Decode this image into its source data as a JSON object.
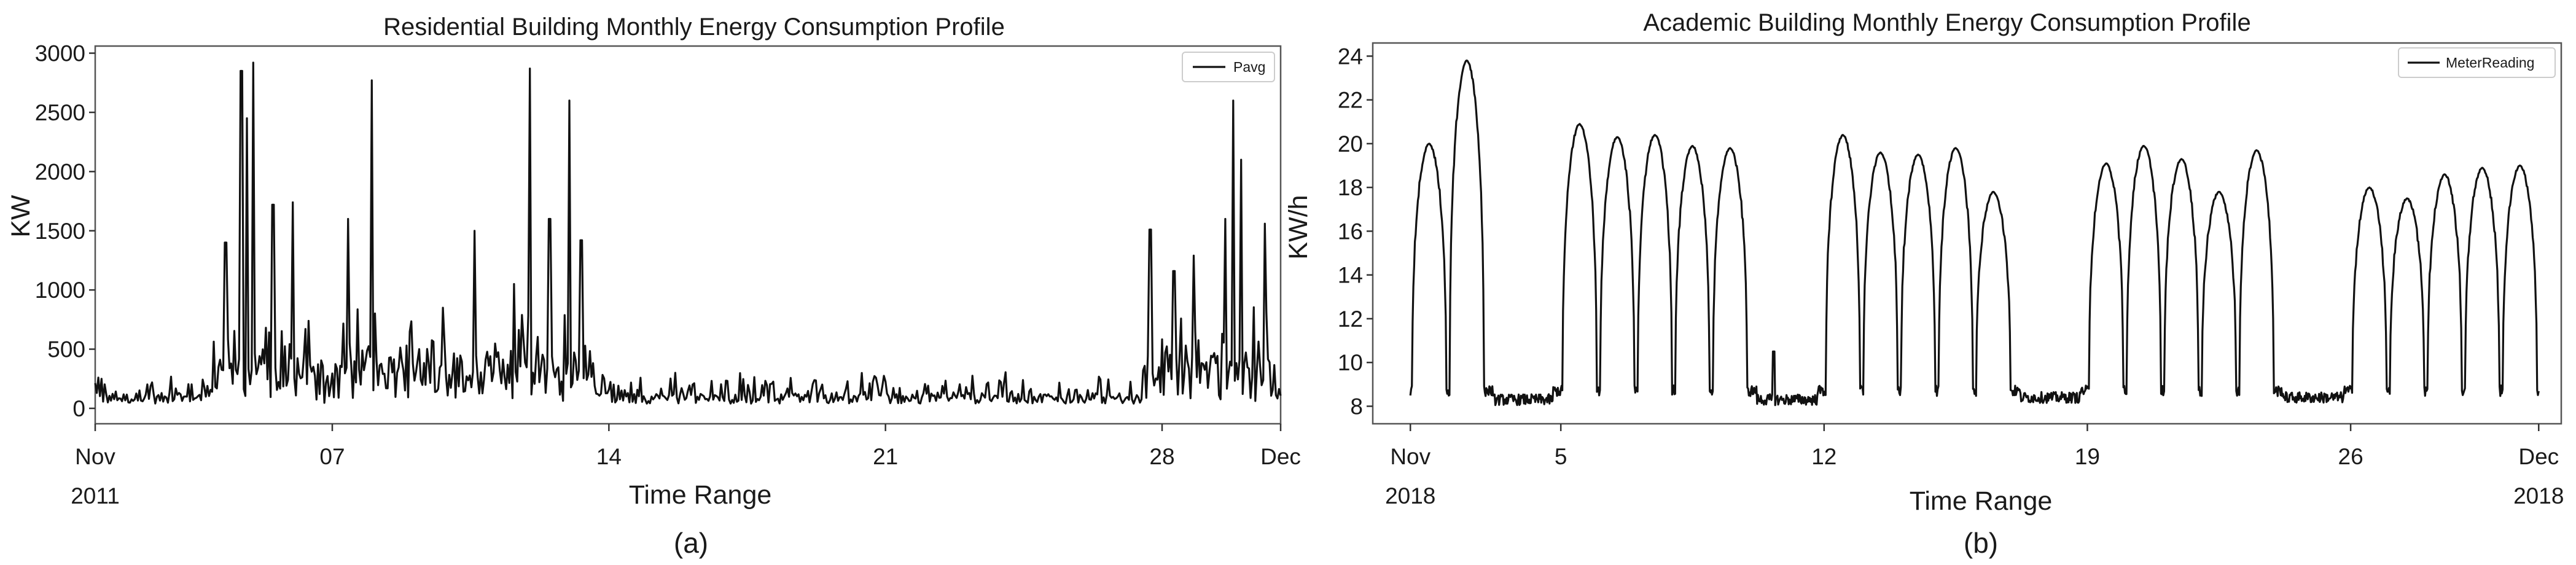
{
  "chart_data": [
    {
      "type": "line",
      "title": "Residential Building Monthly Energy Consumption Profile",
      "xlabel": "Time Range",
      "ylabel": "KW",
      "sublabel": "(a)",
      "legend": [
        "Pavg"
      ],
      "legend_position": "top-right",
      "ylim": [
        -130,
        3060
      ],
      "yticks": [
        0,
        500,
        1000,
        1500,
        2000,
        2500,
        3000
      ],
      "ytick_labels": [
        "0",
        "500",
        "1000",
        "1500",
        "2000",
        "2500",
        "3000"
      ],
      "xlim": [
        0,
        30
      ],
      "xticks": [
        {
          "pos": 0,
          "label": "Nov",
          "label2": "2011"
        },
        {
          "pos": 6,
          "label": "07",
          "label2": ""
        },
        {
          "pos": 13,
          "label": "14",
          "label2": ""
        },
        {
          "pos": 20,
          "label": "21",
          "label2": ""
        },
        {
          "pos": 27,
          "label": "28",
          "label2": ""
        },
        {
          "pos": 30,
          "label": "Dec",
          "label2": ""
        }
      ],
      "series": [
        {
          "name": "Pavg",
          "peaks": [
            [
              3.3,
              1400
            ],
            [
              3.7,
              2850
            ],
            [
              3.85,
              2450
            ],
            [
              4.0,
              2920
            ],
            [
              4.5,
              1720
            ],
            [
              5.0,
              1740
            ],
            [
              6.4,
              1600
            ],
            [
              7.0,
              2770
            ],
            [
              8.2,
              500
            ],
            [
              8.8,
              850
            ],
            [
              9.6,
              1500
            ],
            [
              10.6,
              1050
            ],
            [
              11.0,
              2870
            ],
            [
              11.5,
              1600
            ],
            [
              12.0,
              2600
            ],
            [
              12.3,
              1420
            ],
            [
              26.7,
              1510
            ],
            [
              27.3,
              1160
            ],
            [
              27.8,
              1290
            ],
            [
              28.6,
              1600
            ],
            [
              28.8,
              2600
            ],
            [
              29.0,
              2100
            ],
            [
              29.6,
              1560
            ]
          ]
        }
      ]
    },
    {
      "type": "line",
      "title": "Academic Building Monthly Energy Consumption Profile",
      "xlabel": "Time Range",
      "ylabel": "KW/h",
      "sublabel": "(b)",
      "legend": [
        "MeterReading"
      ],
      "legend_position": "top-right",
      "ylim": [
        7.2,
        24.6
      ],
      "yticks": [
        8,
        10,
        12,
        14,
        16,
        18,
        20,
        22,
        24
      ],
      "ytick_labels": [
        "8",
        "10",
        "12",
        "14",
        "16",
        "18",
        "20",
        "22",
        "24"
      ],
      "xlim": [
        -1,
        30.6
      ],
      "xticks": [
        {
          "pos": 0,
          "label": "Nov",
          "label2": "2018"
        },
        {
          "pos": 4,
          "label": "5",
          "label2": ""
        },
        {
          "pos": 11,
          "label": "12",
          "label2": ""
        },
        {
          "pos": 18,
          "label": "19",
          "label2": ""
        },
        {
          "pos": 25,
          "label": "26",
          "label2": ""
        },
        {
          "pos": 30,
          "label": "Dec",
          "label2": "2018"
        }
      ],
      "series": [
        {
          "name": "MeterReading",
          "daily_peaks": [
            [
              0.5,
              20.0
            ],
            [
              1.5,
              23.8
            ],
            [
              4.5,
              20.9
            ],
            [
              5.5,
              20.3
            ],
            [
              6.5,
              20.4
            ],
            [
              7.5,
              19.9
            ],
            [
              8.5,
              19.8
            ],
            [
              11.5,
              20.4
            ],
            [
              12.5,
              19.6
            ],
            [
              13.5,
              19.5
            ],
            [
              14.5,
              19.8
            ],
            [
              15.5,
              17.8
            ],
            [
              18.5,
              19.1
            ],
            [
              19.5,
              19.9
            ],
            [
              20.5,
              19.3
            ],
            [
              21.5,
              17.8
            ],
            [
              22.5,
              19.7
            ],
            [
              25.5,
              18.0
            ],
            [
              26.5,
              17.5
            ],
            [
              27.5,
              18.6
            ],
            [
              28.5,
              18.9
            ],
            [
              29.5,
              19.0
            ]
          ],
          "base_level": 8.7
        }
      ]
    }
  ]
}
